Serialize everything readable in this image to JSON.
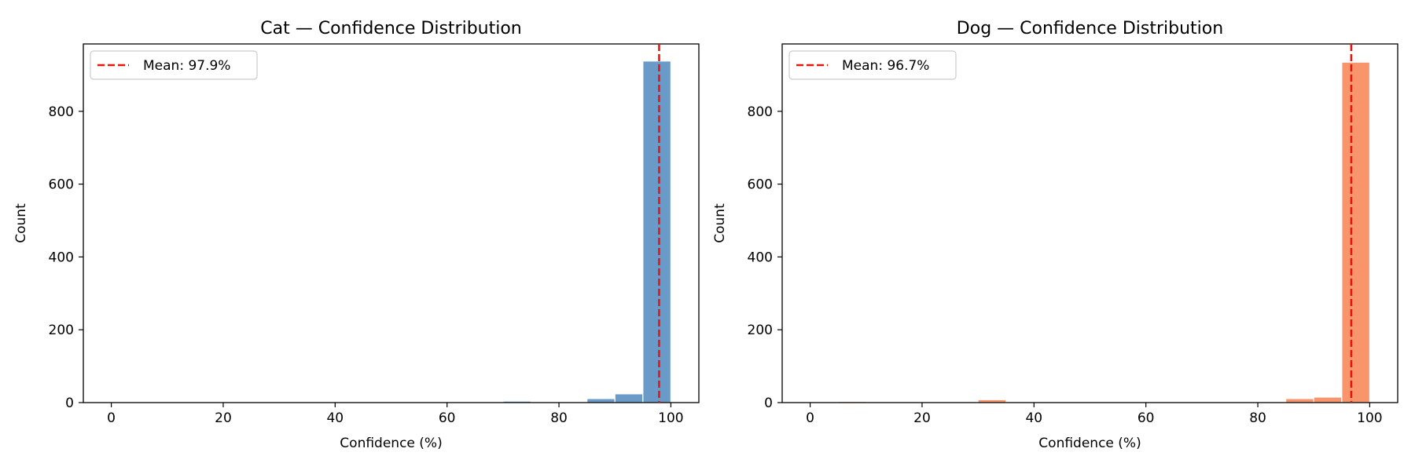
{
  "chart_data": [
    {
      "type": "bar",
      "title": "Cat — Confidence Distribution",
      "xlabel": "Confidence (%)",
      "ylabel": "Count",
      "xlim": [
        -5,
        105
      ],
      "ylim": [
        0,
        985
      ],
      "xticks": [
        0,
        20,
        40,
        60,
        80,
        100
      ],
      "yticks": [
        0,
        200,
        400,
        600,
        800
      ],
      "bin_width": 5,
      "bins": [
        {
          "start": 70,
          "count": 4
        },
        {
          "start": 85,
          "count": 11
        },
        {
          "start": 90,
          "count": 24
        },
        {
          "start": 95,
          "count": 938
        }
      ],
      "bar_color": "#6a9ac8",
      "mean_line": {
        "x": 97.9,
        "label": "Mean: 97.9%",
        "color": "#e8140f"
      },
      "legend_position": "upper-left",
      "grid": false
    },
    {
      "type": "bar",
      "title": "Dog — Confidence Distribution",
      "xlabel": "Confidence (%)",
      "ylabel": "Count",
      "xlim": [
        -5,
        105
      ],
      "ylim": [
        0,
        985
      ],
      "xticks": [
        0,
        20,
        40,
        60,
        80,
        100
      ],
      "yticks": [
        0,
        200,
        400,
        600,
        800
      ],
      "bin_width": 5,
      "bins": [
        {
          "start": 5,
          "count": 3
        },
        {
          "start": 30,
          "count": 8
        },
        {
          "start": 85,
          "count": 11
        },
        {
          "start": 90,
          "count": 15
        },
        {
          "start": 95,
          "count": 935
        }
      ],
      "bar_color": "#f9956c",
      "mean_line": {
        "x": 96.7,
        "label": "Mean: 96.7%",
        "color": "#e8140f"
      },
      "legend_position": "upper-left",
      "grid": false
    }
  ]
}
